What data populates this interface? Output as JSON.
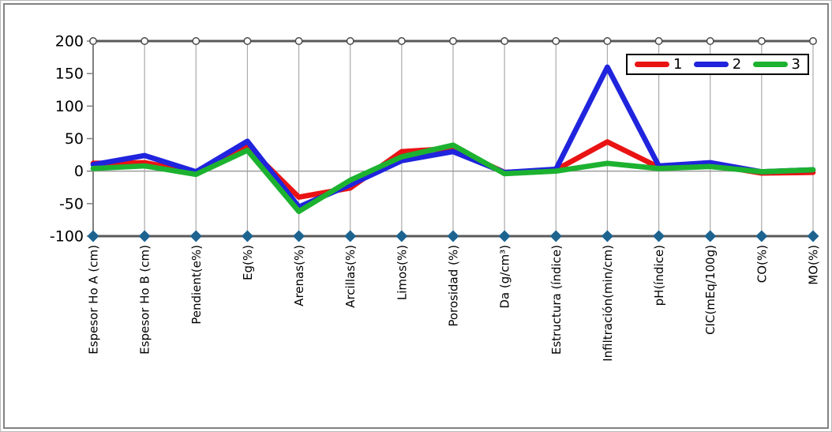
{
  "chart_data": {
    "type": "line",
    "title": "",
    "categories": [
      "Espesor Ho A (cm)",
      "Espesor Ho B (cm)",
      "Pendient(e%)",
      "Eg(%)",
      "Arenas(%)",
      "Arcillas(%)",
      "Limos(%)",
      "Porosidad (%)",
      "Da (g/cm³)",
      "Estructura (índice)",
      "Infiltración(min/cm)",
      "pH(índice)",
      "CIC(mEq/100g)",
      "CO(%)",
      "MO(%)"
    ],
    "series": [
      {
        "name": "1",
        "color": "#ea1313",
        "values": [
          12,
          13,
          -2,
          38,
          -40,
          -26,
          30,
          35,
          -2,
          2,
          45,
          6,
          10,
          -3,
          -2
        ]
      },
      {
        "name": "2",
        "color": "#2024dd",
        "values": [
          10,
          24,
          -1,
          46,
          -55,
          -21,
          16,
          30,
          -2,
          3,
          160,
          8,
          13,
          -1,
          2
        ]
      },
      {
        "name": "3",
        "color": "#1cb230",
        "values": [
          4,
          8,
          -5,
          32,
          -62,
          -14,
          22,
          40,
          -4,
          0,
          12,
          4,
          7,
          -1,
          2
        ]
      }
    ],
    "ylim": [
      -100,
      200
    ],
    "yticks": [
      200,
      150,
      100,
      50,
      0,
      -50,
      -100
    ],
    "grid": "vertical-category-lines, horizontal line only at 0",
    "legend_position": "top-right-inside",
    "boundary_markers": {
      "top": {
        "value": 200,
        "marker": "circle",
        "fill": "#ffffff",
        "stroke": "#4a4a4a"
      },
      "bottom": {
        "value": -100,
        "marker": "diamond",
        "fill": "#1d6390"
      }
    },
    "colors": {
      "axis": "#595959",
      "y_axis_line": "#7f7f7f",
      "gridline": "#ababab",
      "zero_line": "#999999",
      "tick_text": "#000000"
    }
  }
}
